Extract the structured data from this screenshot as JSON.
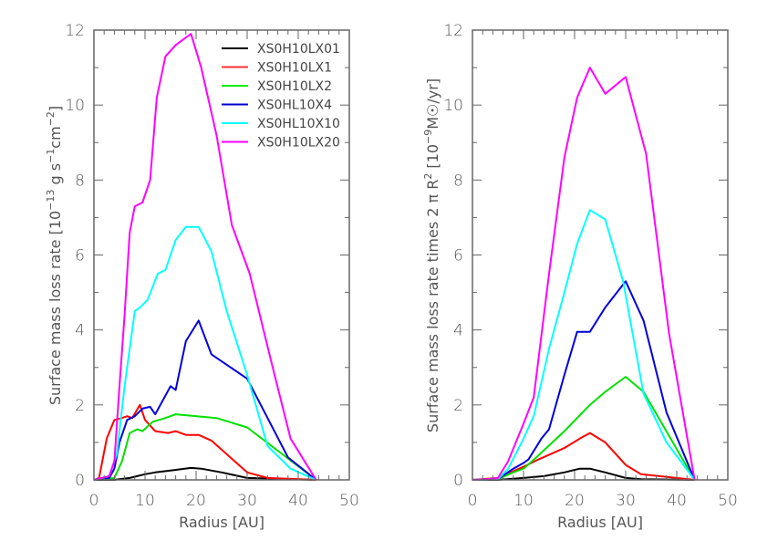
{
  "chart_data": [
    {
      "type": "line",
      "title": "",
      "xlabel": "Radius [AU]",
      "ylabel": "Surface mass loss rate [10^-13 g s^-1 cm^-2]",
      "xlim": [
        0,
        50
      ],
      "ylim": [
        0,
        12
      ],
      "xticks": [
        0,
        10,
        20,
        30,
        40,
        50
      ],
      "yticks": [
        0,
        2,
        4,
        6,
        8,
        10,
        12
      ],
      "grid": false,
      "legend_position": "upper right",
      "series": [
        {
          "name": "XS0H10LX01",
          "color": "#000000",
          "x": [
            0,
            4,
            7,
            10,
            12,
            15,
            19,
            21,
            25,
            30,
            43.5
          ],
          "y": [
            0,
            0,
            0.05,
            0.15,
            0.2,
            0.25,
            0.32,
            0.3,
            0.2,
            0.05,
            0
          ]
        },
        {
          "name": "XS0H10LX1",
          "color": "#ff0000",
          "x": [
            0,
            1,
            2.5,
            4,
            5.5,
            6.5,
            7.5,
            9,
            10,
            12,
            14.5,
            16,
            18,
            20.5,
            23,
            30,
            34,
            43.5
          ],
          "y": [
            0,
            0.05,
            1.1,
            1.6,
            1.65,
            1.7,
            1.65,
            2.0,
            1.6,
            1.3,
            1.25,
            1.3,
            1.2,
            1.2,
            1.05,
            0.2,
            0.05,
            0
          ]
        },
        {
          "name": "XS0H10LX2",
          "color": "#00e000",
          "x": [
            0,
            4,
            5.5,
            7,
            8.5,
            9.5,
            11.5,
            14,
            16,
            24,
            30,
            43.5
          ],
          "y": [
            0,
            0.05,
            0.5,
            1.25,
            1.35,
            1.3,
            1.55,
            1.65,
            1.75,
            1.65,
            1.4,
            0
          ]
        },
        {
          "name": "XS0HL10X4",
          "color": "#0000dd",
          "x": [
            0,
            3,
            4,
            5,
            6.5,
            8,
            9.5,
            11,
            12,
            15,
            16,
            18,
            20.5,
            23,
            30,
            38,
            43.5
          ],
          "y": [
            0,
            0.05,
            0.3,
            1.0,
            1.6,
            1.7,
            1.9,
            1.95,
            1.75,
            2.5,
            2.4,
            3.7,
            4.25,
            3.35,
            2.7,
            0.6,
            0
          ]
        },
        {
          "name": "XS0HL10X10",
          "color": "#00ffff",
          "x": [
            0,
            3,
            4.5,
            6,
            7,
            8,
            9,
            10.5,
            12.5,
            14,
            16,
            18,
            20.5,
            23,
            26,
            30,
            34,
            38.5,
            43.5
          ],
          "y": [
            0,
            0.1,
            0.7,
            2.5,
            3.5,
            4.5,
            4.6,
            4.8,
            5.5,
            5.6,
            6.4,
            6.75,
            6.75,
            6.1,
            4.5,
            2.8,
            0.9,
            0.3,
            0
          ]
        },
        {
          "name": "XS0H10LX20",
          "color": "#ff00ff",
          "x": [
            0,
            3,
            4,
            5,
            6,
            7,
            8,
            9.5,
            11,
            12.3,
            14,
            16,
            19,
            21,
            24,
            27,
            30.5,
            35,
            38.5,
            43.5
          ],
          "y": [
            0,
            0.1,
            0.5,
            2.5,
            4.4,
            6.6,
            7.3,
            7.4,
            8.0,
            10.2,
            11.3,
            11.6,
            11.9,
            11.0,
            9.2,
            6.8,
            5.5,
            3.0,
            1.1,
            0
          ]
        }
      ]
    },
    {
      "type": "line",
      "title": "",
      "xlabel": "Radius [AU]",
      "ylabel": "Surface mass loss rate times 2 π R² [10^-9 M☉/yr]",
      "xlim": [
        0,
        50
      ],
      "ylim": [
        0,
        12
      ],
      "xticks": [
        0,
        10,
        20,
        30,
        40,
        50
      ],
      "yticks": [
        0,
        2,
        4,
        6,
        8,
        10,
        12
      ],
      "grid": false,
      "series": [
        {
          "name": "XS0H10LX01",
          "color": "#000000",
          "x": [
            0,
            5,
            10,
            14,
            18,
            21,
            23,
            26,
            30,
            33,
            43.5
          ],
          "y": [
            0,
            0,
            0.05,
            0.1,
            0.2,
            0.3,
            0.3,
            0.2,
            0.05,
            0.02,
            0
          ]
        },
        {
          "name": "XS0H10LX1",
          "color": "#ff0000",
          "x": [
            0,
            5,
            10,
            13,
            18,
            21,
            23,
            26,
            30,
            33,
            43.5
          ],
          "y": [
            0,
            0.05,
            0.35,
            0.55,
            0.85,
            1.1,
            1.25,
            1.0,
            0.4,
            0.15,
            0
          ]
        },
        {
          "name": "XS0H10LX2",
          "color": "#00e000",
          "x": [
            0,
            5,
            8,
            10,
            12.5,
            18,
            23,
            26,
            30,
            33.5,
            43.5
          ],
          "y": [
            0,
            0.02,
            0.2,
            0.3,
            0.6,
            1.3,
            2.0,
            2.35,
            2.75,
            2.35,
            0
          ]
        },
        {
          "name": "XS0HL10X4",
          "color": "#0000dd",
          "x": [
            0,
            5,
            8,
            10,
            11,
            13.5,
            15,
            18,
            20.5,
            23,
            26,
            30,
            33.5,
            38,
            43.5
          ],
          "y": [
            0,
            0.02,
            0.3,
            0.45,
            0.55,
            1.1,
            1.35,
            2.8,
            3.95,
            3.95,
            4.6,
            5.3,
            4.25,
            1.8,
            0
          ]
        },
        {
          "name": "XS0HL10X10",
          "color": "#00ffff",
          "x": [
            0,
            5,
            7,
            10,
            12,
            15,
            18,
            20.5,
            23,
            26,
            29.5,
            33.5,
            38,
            43.5
          ],
          "y": [
            0,
            0.02,
            0.3,
            1.1,
            1.7,
            3.5,
            5.0,
            6.3,
            7.2,
            6.95,
            5.3,
            2.3,
            1.0,
            0
          ]
        },
        {
          "name": "XS0H10LX20",
          "color": "#ff00ff",
          "x": [
            0,
            3,
            5,
            7,
            10,
            12,
            15,
            18,
            20.5,
            23,
            26,
            30,
            34,
            38.5,
            43.5
          ],
          "y": [
            0,
            0.02,
            0.05,
            0.5,
            1.5,
            2.2,
            5.5,
            8.6,
            10.2,
            11.0,
            10.3,
            10.75,
            8.7,
            3.9,
            0
          ]
        }
      ]
    }
  ],
  "left_panel": {
    "ylabel_main": "Surface mass loss rate [10",
    "ylabel_exp1": "−13",
    "ylabel_mid": " g s",
    "ylabel_exp2": "−1",
    "ylabel_mid2": "cm",
    "ylabel_exp3": "−2",
    "ylabel_end": "]",
    "xlabel": "Radius [AU]"
  },
  "right_panel": {
    "ylabel_main": "Surface mass loss rate times 2 π R",
    "ylabel_exp1": "2",
    "ylabel_mid": " [10",
    "ylabel_exp2": "−9",
    "ylabel_end": "M☉/yr]",
    "xlabel": "Radius [AU]"
  },
  "legend": [
    {
      "label": "XS0H10LX01",
      "color": "#000000"
    },
    {
      "label": "XS0H10LX1",
      "color": "#ff3030"
    },
    {
      "label": "XS0H10LX2",
      "color": "#00ee00"
    },
    {
      "label": "XS0HL10X4",
      "color": "#0000cc"
    },
    {
      "label": "XS0HL10X10",
      "color": "#00ffff"
    },
    {
      "label": "XS0H10LX20",
      "color": "#ff00ff"
    }
  ]
}
